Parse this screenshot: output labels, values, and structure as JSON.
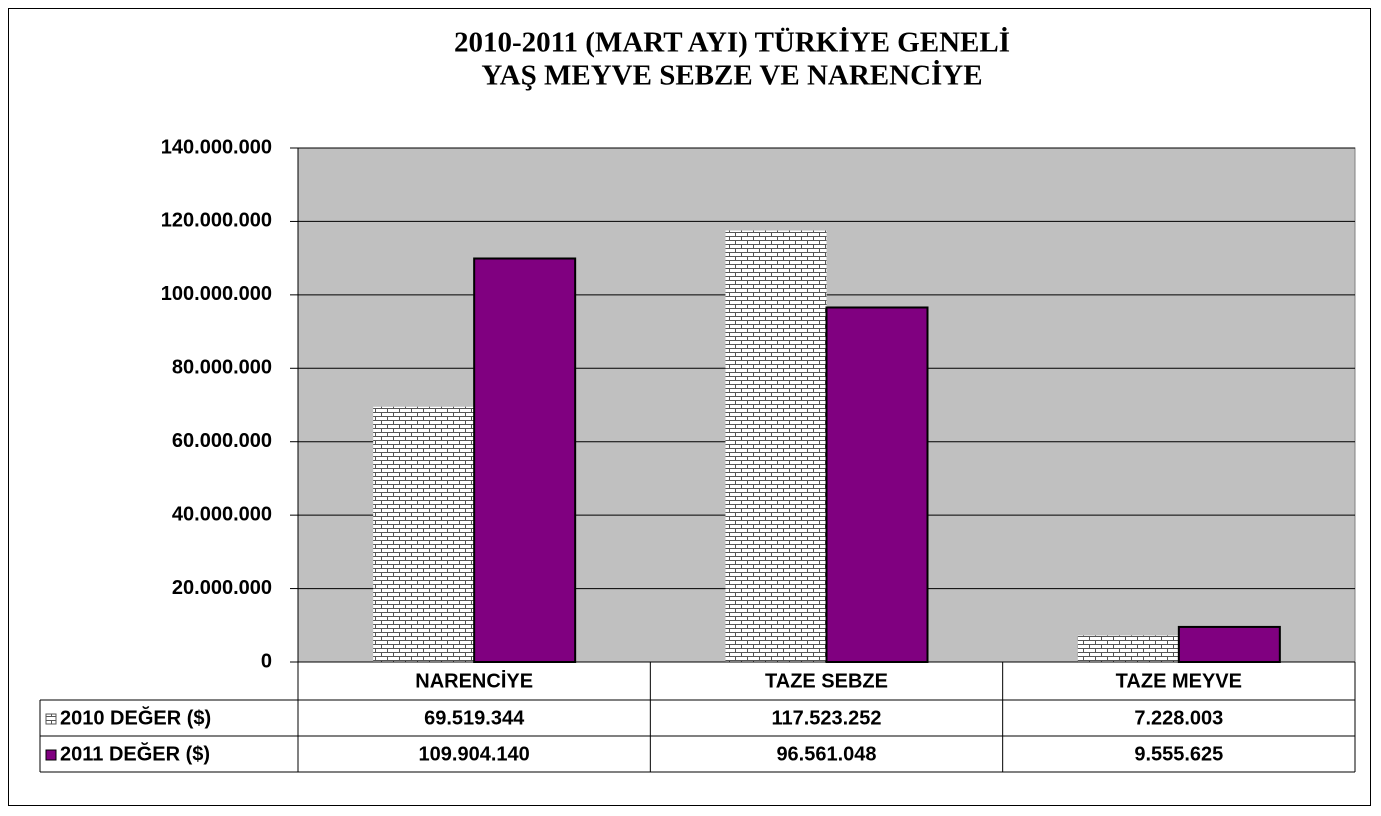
{
  "chart_data": {
    "type": "bar",
    "title": [
      "2010-2011 (MART AYI) TÜRKİYE GENELİ",
      "YAŞ MEYVE SEBZE VE NARENCİYE"
    ],
    "categories": [
      "NARENCİYE",
      "TAZE SEBZE",
      "TAZE MEYVE"
    ],
    "series": [
      {
        "name": "2010 DEĞER ($)",
        "color": "#ffffff",
        "values": [
          69519344,
          117523252,
          7228003
        ],
        "value_labels": [
          "69.519.344",
          "117.523.252",
          "7.228.003"
        ]
      },
      {
        "name": "2011 DEĞER ($)",
        "color": "#800080",
        "values": [
          109904140,
          96561048,
          9555625
        ],
        "value_labels": [
          "109.904.140",
          "96.561.048",
          "9.555.625"
        ]
      }
    ],
    "ylim": [
      0,
      140000000
    ],
    "yticks": [
      0,
      {
        "value": 20000000,
        "label": "20.000.000"
      },
      {
        "value": 40000000,
        "label": "40.000.000"
      },
      {
        "value": 60000000,
        "label": "60.000.000"
      },
      {
        "value": 80000000,
        "label": "80.000.000"
      },
      {
        "value": 100000000,
        "label": "100.000.000"
      },
      {
        "value": 120000000,
        "label": "120.000.000"
      },
      {
        "value": 140000000,
        "label": "140.000.000"
      }
    ],
    "grid": true
  }
}
